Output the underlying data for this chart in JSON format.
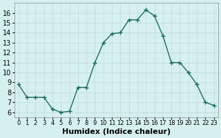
{
  "x": [
    0,
    1,
    2,
    3,
    4,
    5,
    6,
    7,
    8,
    9,
    10,
    11,
    12,
    13,
    14,
    15,
    16,
    17,
    18,
    19,
    20,
    21,
    22,
    23
  ],
  "y": [
    8.8,
    7.5,
    7.5,
    7.5,
    6.3,
    6.0,
    6.1,
    8.5,
    8.5,
    11.0,
    13.0,
    13.9,
    14.0,
    15.3,
    15.3,
    16.3,
    15.7,
    13.7,
    11.0,
    11.0,
    10.0,
    8.8,
    7.0,
    6.7
  ],
  "xlabel": "Humidex (Indice chaleur)",
  "xlim": [
    -0.5,
    23.5
  ],
  "ylim": [
    5.5,
    17
  ],
  "yticks": [
    6,
    7,
    8,
    9,
    10,
    11,
    12,
    13,
    14,
    15,
    16
  ],
  "xticks": [
    0,
    1,
    2,
    3,
    4,
    5,
    6,
    7,
    8,
    9,
    10,
    11,
    12,
    13,
    14,
    15,
    16,
    17,
    18,
    19,
    20,
    21,
    22,
    23
  ],
  "line_color": "#1a6b5a",
  "bg_color": "#d6f0f0",
  "grid_color": "#c0d8d8",
  "tick_label_fontsize": 7,
  "xlabel_fontsize": 8
}
